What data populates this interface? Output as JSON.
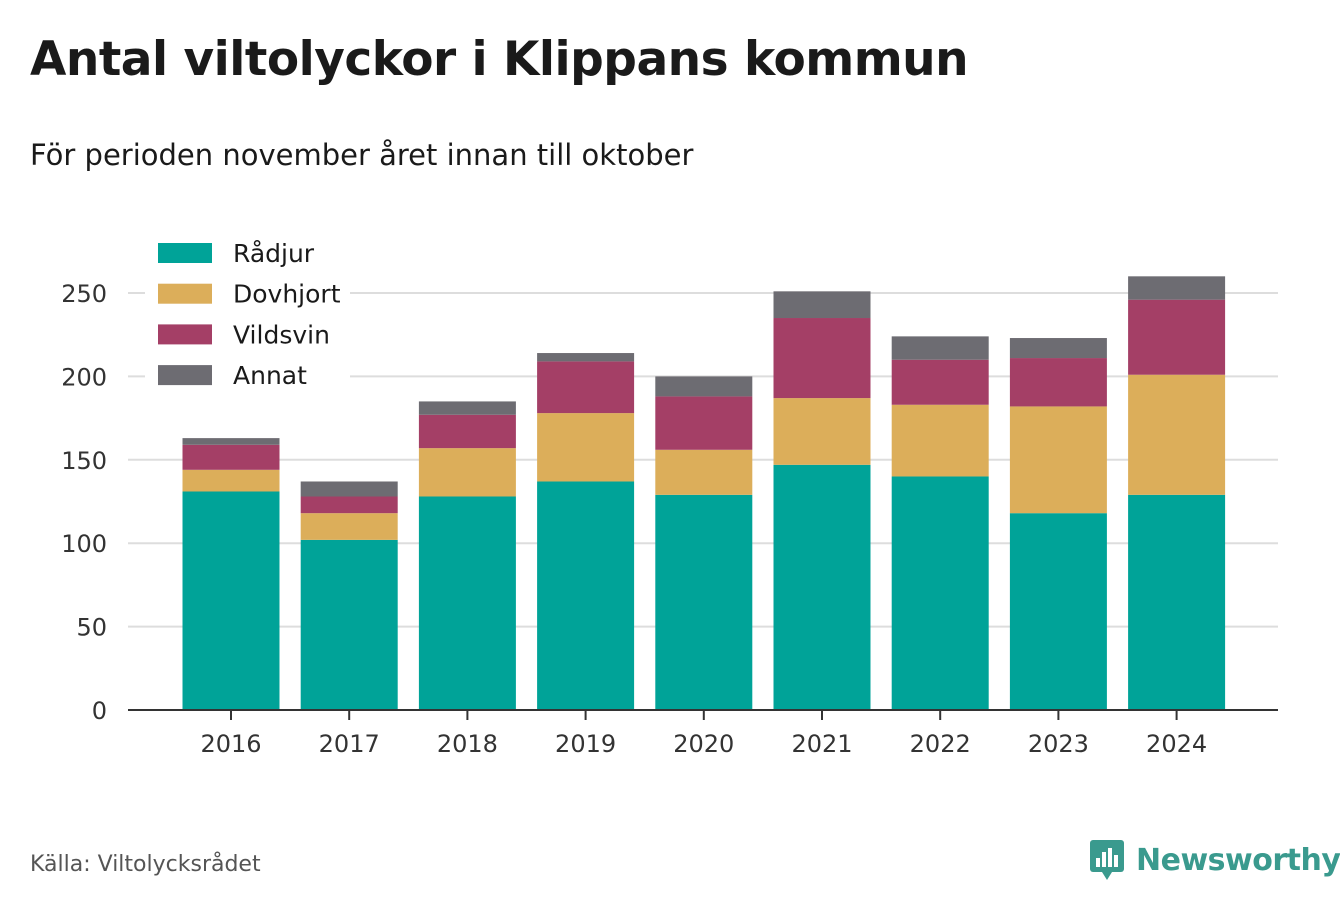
{
  "header": {
    "title": "Antal viltolyckor i Klippans kommun",
    "subtitle": "För perioden november året innan till oktober"
  },
  "footer": {
    "source": "Källa: Viltolycksrådet",
    "brand": "Newsworthy",
    "brand_icon": "bar-chart-speech-bubble-icon",
    "brand_color": "#3a9a8e"
  },
  "chart_data": {
    "type": "bar",
    "stacked": true,
    "categories": [
      "2016",
      "2017",
      "2018",
      "2019",
      "2020",
      "2021",
      "2022",
      "2023",
      "2024"
    ],
    "series": [
      {
        "name": "Rådjur",
        "color": "#00a398",
        "values": [
          131,
          102,
          128,
          137,
          129,
          147,
          140,
          118,
          129
        ]
      },
      {
        "name": "Dovhjort",
        "color": "#dcae5a",
        "values": [
          13,
          16,
          29,
          41,
          27,
          40,
          43,
          64,
          72
        ]
      },
      {
        "name": "Vildsvin",
        "color": "#a43f66",
        "values": [
          15,
          10,
          20,
          31,
          32,
          48,
          27,
          29,
          45
        ]
      },
      {
        "name": "Annat",
        "color": "#6d6c72",
        "values": [
          4,
          9,
          8,
          5,
          12,
          16,
          14,
          12,
          14
        ]
      }
    ],
    "yticks": [
      0,
      50,
      100,
      150,
      200,
      250
    ],
    "ylim": [
      0,
      260
    ],
    "grid": true,
    "legend": "top-left"
  }
}
